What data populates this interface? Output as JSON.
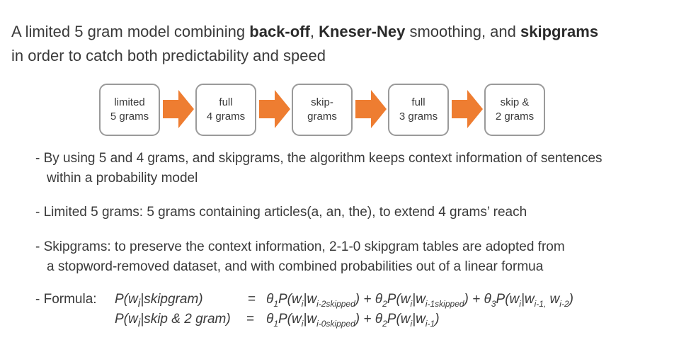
{
  "title": {
    "line1_prefix": "A limited 5 gram model combining ",
    "line1_bold1": "back-off",
    "line1_sep": ", ",
    "line1_bold2": "Kneser-Ney",
    "line1_mid": " smoothing, and ",
    "line1_bold3": "skipgrams",
    "line2": "in order to catch both predictability and speed"
  },
  "flow": {
    "boxes": [
      {
        "line1": "limited",
        "line2": "5 grams"
      },
      {
        "line1": "full",
        "line2": "4 grams"
      },
      {
        "line1": "skip-",
        "line2": "grams"
      },
      {
        "line1": "full",
        "line2": "3 grams"
      },
      {
        "line1": "skip &",
        "line2": "2 grams"
      }
    ],
    "arrow_color": "#ee7d31",
    "box_border_color": "#9a9a9a"
  },
  "bullets": {
    "b1_line1": "- By using 5 and 4 grams, and skipgrams, the algorithm keeps context information of sentences",
    "b1_line2": "within a probability model",
    "b2": "- Limited 5 grams: 5 grams containing articles(a, an, the), to extend 4 grams’ reach",
    "b3_line1": "- Skipgrams: to preserve the context information, 2-1-0 skipgram tables are adopted from",
    "b3_line2": "a stopword-removed dataset, and with combined probabilities out of a linear formua"
  },
  "formula": {
    "label": "- Formula:",
    "eq": "=",
    "row1": {
      "lhs": "P(wi|skipgram)",
      "t1": "θ1P(wi|wi-2skipped)",
      "t2": "θ2P(wi|wi-1skipped)",
      "t3": "θ3P(wi|wi-1, wi-2)"
    },
    "row2": {
      "lhs": "P(wi|skip & 2 gram)",
      "t1": "θ1P(wi|wi-0skipped)",
      "t2": "θ2P(wi|wi-1)"
    }
  }
}
